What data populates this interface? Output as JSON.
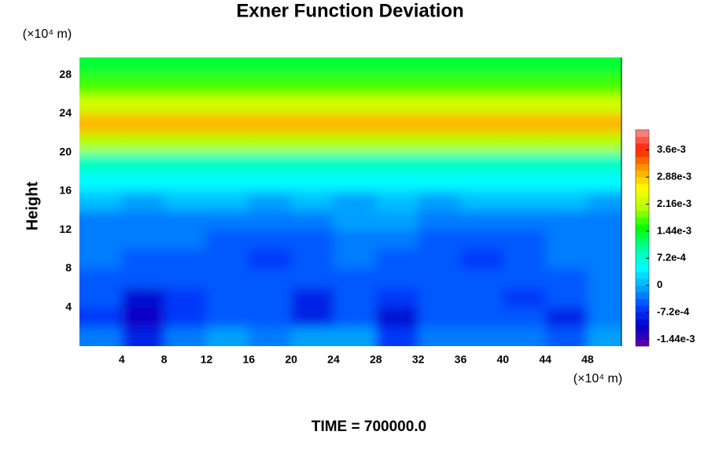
{
  "chart_data": {
    "type": "contour",
    "title": "Exner Function Deviation",
    "ylabel": "Height",
    "x_unit": "(×10⁴ m)",
    "y_unit": "(×10⁴ m)",
    "footer": "TIME = 700000.0",
    "xlim": [
      0,
      51.2
    ],
    "ylim": [
      0,
      29.8
    ],
    "xticks": [
      4,
      8,
      12,
      16,
      20,
      24,
      28,
      32,
      36,
      40,
      44,
      48
    ],
    "yticks": [
      4,
      8,
      12,
      16,
      20,
      24,
      28
    ],
    "x": [
      2,
      6,
      10,
      14,
      18,
      22,
      26,
      30,
      34,
      38,
      42,
      46,
      50
    ],
    "y": [
      1,
      3,
      5,
      7,
      9,
      11,
      13,
      15,
      17,
      19,
      21,
      23,
      25,
      27,
      29
    ],
    "z": [
      [
        -0.0002,
        -0.0008,
        -0.0003,
        -0.0001,
        -0.0002,
        -0.0001,
        -0.0001,
        -0.0006,
        -0.0003,
        -0.0002,
        -0.0002,
        -0.0004,
        -0.0001
      ],
      [
        -0.0006,
        -0.0011,
        -0.0006,
        -0.0004,
        -0.0004,
        -0.0008,
        -0.0004,
        -0.001,
        -0.0005,
        -0.0004,
        -0.0004,
        -0.0008,
        -0.0003
      ],
      [
        -0.0005,
        -0.0009,
        -0.0006,
        -0.0004,
        -0.0005,
        -0.0008,
        -0.0004,
        -0.0007,
        -0.0004,
        -0.0004,
        -0.0007,
        -0.0005,
        -0.0003
      ],
      [
        -0.0004,
        -0.0005,
        -0.0005,
        -0.0004,
        -0.0005,
        -0.0005,
        -0.0004,
        -0.0004,
        -0.0004,
        -0.0004,
        -0.0005,
        -0.0004,
        -0.0003
      ],
      [
        -0.0003,
        -0.0004,
        -0.0004,
        -0.0005,
        -0.0006,
        -0.0004,
        -0.0003,
        -0.0004,
        -0.0004,
        -0.0006,
        -0.0004,
        -0.0003,
        -0.0003
      ],
      [
        -0.0003,
        -0.0003,
        -0.0003,
        -0.0004,
        -0.0004,
        -0.0004,
        -0.0003,
        -0.0003,
        -0.0004,
        -0.0005,
        -0.0004,
        -0.0003,
        -0.0003
      ],
      [
        -0.0002,
        -0.0003,
        -0.0002,
        -0.0002,
        -0.0003,
        -0.0002,
        -0.0001,
        -0.0001,
        -0.0002,
        -0.0002,
        -0.0002,
        -0.0002,
        -0.0002
      ],
      [
        0.0001,
        0,
        0.0001,
        0.0001,
        0,
        0.0001,
        0,
        0.0001,
        0,
        0.0001,
        0.0001,
        0.0001,
        0
      ],
      [
        0.0004,
        0.0004,
        0.0004,
        0.0004,
        0.0004,
        0.0004,
        0.0004,
        0.0004,
        0.0004,
        0.0004,
        0.0004,
        0.0004,
        0.0004
      ],
      [
        0.0009,
        0.0009,
        0.0009,
        0.0009,
        0.0009,
        0.0009,
        0.0008,
        0.0009,
        0.0009,
        0.0009,
        0.0009,
        0.0009,
        0.0009
      ],
      [
        0.002,
        0.002,
        0.002,
        0.002,
        0.002,
        0.002,
        0.002,
        0.002,
        0.002,
        0.002,
        0.002,
        0.002,
        0.002
      ],
      [
        0.0029,
        0.0029,
        0.0029,
        0.0029,
        0.0029,
        0.0029,
        0.0029,
        0.0029,
        0.0029,
        0.0029,
        0.0029,
        0.0029,
        0.0029
      ],
      [
        0.0023,
        0.0023,
        0.0023,
        0.0023,
        0.0023,
        0.0023,
        0.0023,
        0.0023,
        0.0023,
        0.0023,
        0.0023,
        0.0023,
        0.0023
      ],
      [
        0.0017,
        0.0017,
        0.0017,
        0.0017,
        0.0017,
        0.0017,
        0.0017,
        0.0017,
        0.0017,
        0.0017,
        0.0017,
        0.0017,
        0.0017
      ],
      [
        0.0014,
        0.0014,
        0.0014,
        0.0014,
        0.0014,
        0.0014,
        0.0014,
        0.0014,
        0.0014,
        0.0014,
        0.0014,
        0.0014,
        0.0014
      ]
    ],
    "clim": [
      -0.00162,
      0.00414
    ],
    "level_step": 0.00018,
    "colormap": [
      "#6a00a8",
      "#0000c8",
      "#0040ff",
      "#00a8ff",
      "#00ffff",
      "#00ffa0",
      "#00ff00",
      "#b0ff00",
      "#ffff00",
      "#ffa000",
      "#ff2000",
      "#ff9090"
    ],
    "cticks": [
      {
        "value": -0.00144,
        "label": "-1.44e-3"
      },
      {
        "value": -0.00072,
        "label": "-7.2e-4"
      },
      0,
      {
        "value": 0.00072,
        "label": "7.2e-4"
      },
      {
        "value": 0.00144,
        "label": "1.44e-3"
      },
      {
        "value": 0.00216,
        "label": "2.16e-3"
      },
      {
        "value": 0.00288,
        "label": "2.88e-3"
      },
      {
        "value": 0.0036,
        "label": "3.6e-3"
      }
    ]
  }
}
